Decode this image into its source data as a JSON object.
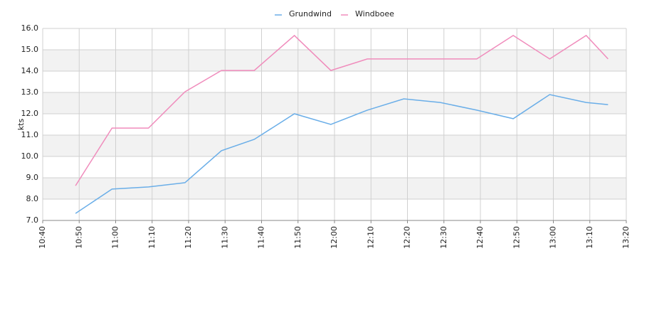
{
  "chart_data": {
    "type": "line",
    "y_label": "kts",
    "x": [
      "10:49",
      "10:59",
      "11:09",
      "11:19",
      "11:29",
      "11:38",
      "11:49",
      "11:59",
      "12:09",
      "12:19",
      "12:29",
      "12:39",
      "12:49",
      "12:59",
      "13:09",
      "13:15"
    ],
    "series": [
      {
        "name": "Grundwind",
        "color": "#6aaee8",
        "values": [
          7.33,
          8.47,
          8.57,
          8.77,
          10.27,
          10.8,
          12.0,
          11.5,
          12.17,
          12.7,
          12.53,
          12.17,
          11.77,
          12.9,
          12.53,
          12.43
        ]
      },
      {
        "name": "Windboee",
        "color": "#f08cbc",
        "values": [
          8.63,
          11.33,
          11.33,
          13.03,
          14.03,
          14.03,
          15.67,
          14.03,
          14.57,
          14.57,
          14.57,
          14.57,
          15.67,
          14.57,
          15.67,
          14.57
        ]
      }
    ],
    "xlim": [
      "10:40",
      "13:20"
    ],
    "xticks": [
      "10:40",
      "10:50",
      "11:00",
      "11:10",
      "11:20",
      "11:30",
      "11:40",
      "11:50",
      "12:00",
      "12:10",
      "12:20",
      "12:30",
      "12:40",
      "12:50",
      "13:00",
      "13:10",
      "13:20"
    ],
    "ylim": [
      7,
      16
    ],
    "yticks": [
      {
        "value": 7,
        "label": "7.0"
      },
      {
        "value": 8,
        "label": "8.0"
      },
      {
        "value": 9,
        "label": "9.0"
      },
      {
        "value": 10,
        "label": "10.0"
      },
      {
        "value": 11,
        "label": "11.0"
      },
      {
        "value": 12,
        "label": "12.0"
      },
      {
        "value": 13,
        "label": "13.0"
      },
      {
        "value": 14,
        "label": "14.0"
      },
      {
        "value": 15,
        "label": "15.0"
      },
      {
        "value": 16,
        "label": "16.0"
      }
    ],
    "grid": true,
    "legend": "top"
  }
}
